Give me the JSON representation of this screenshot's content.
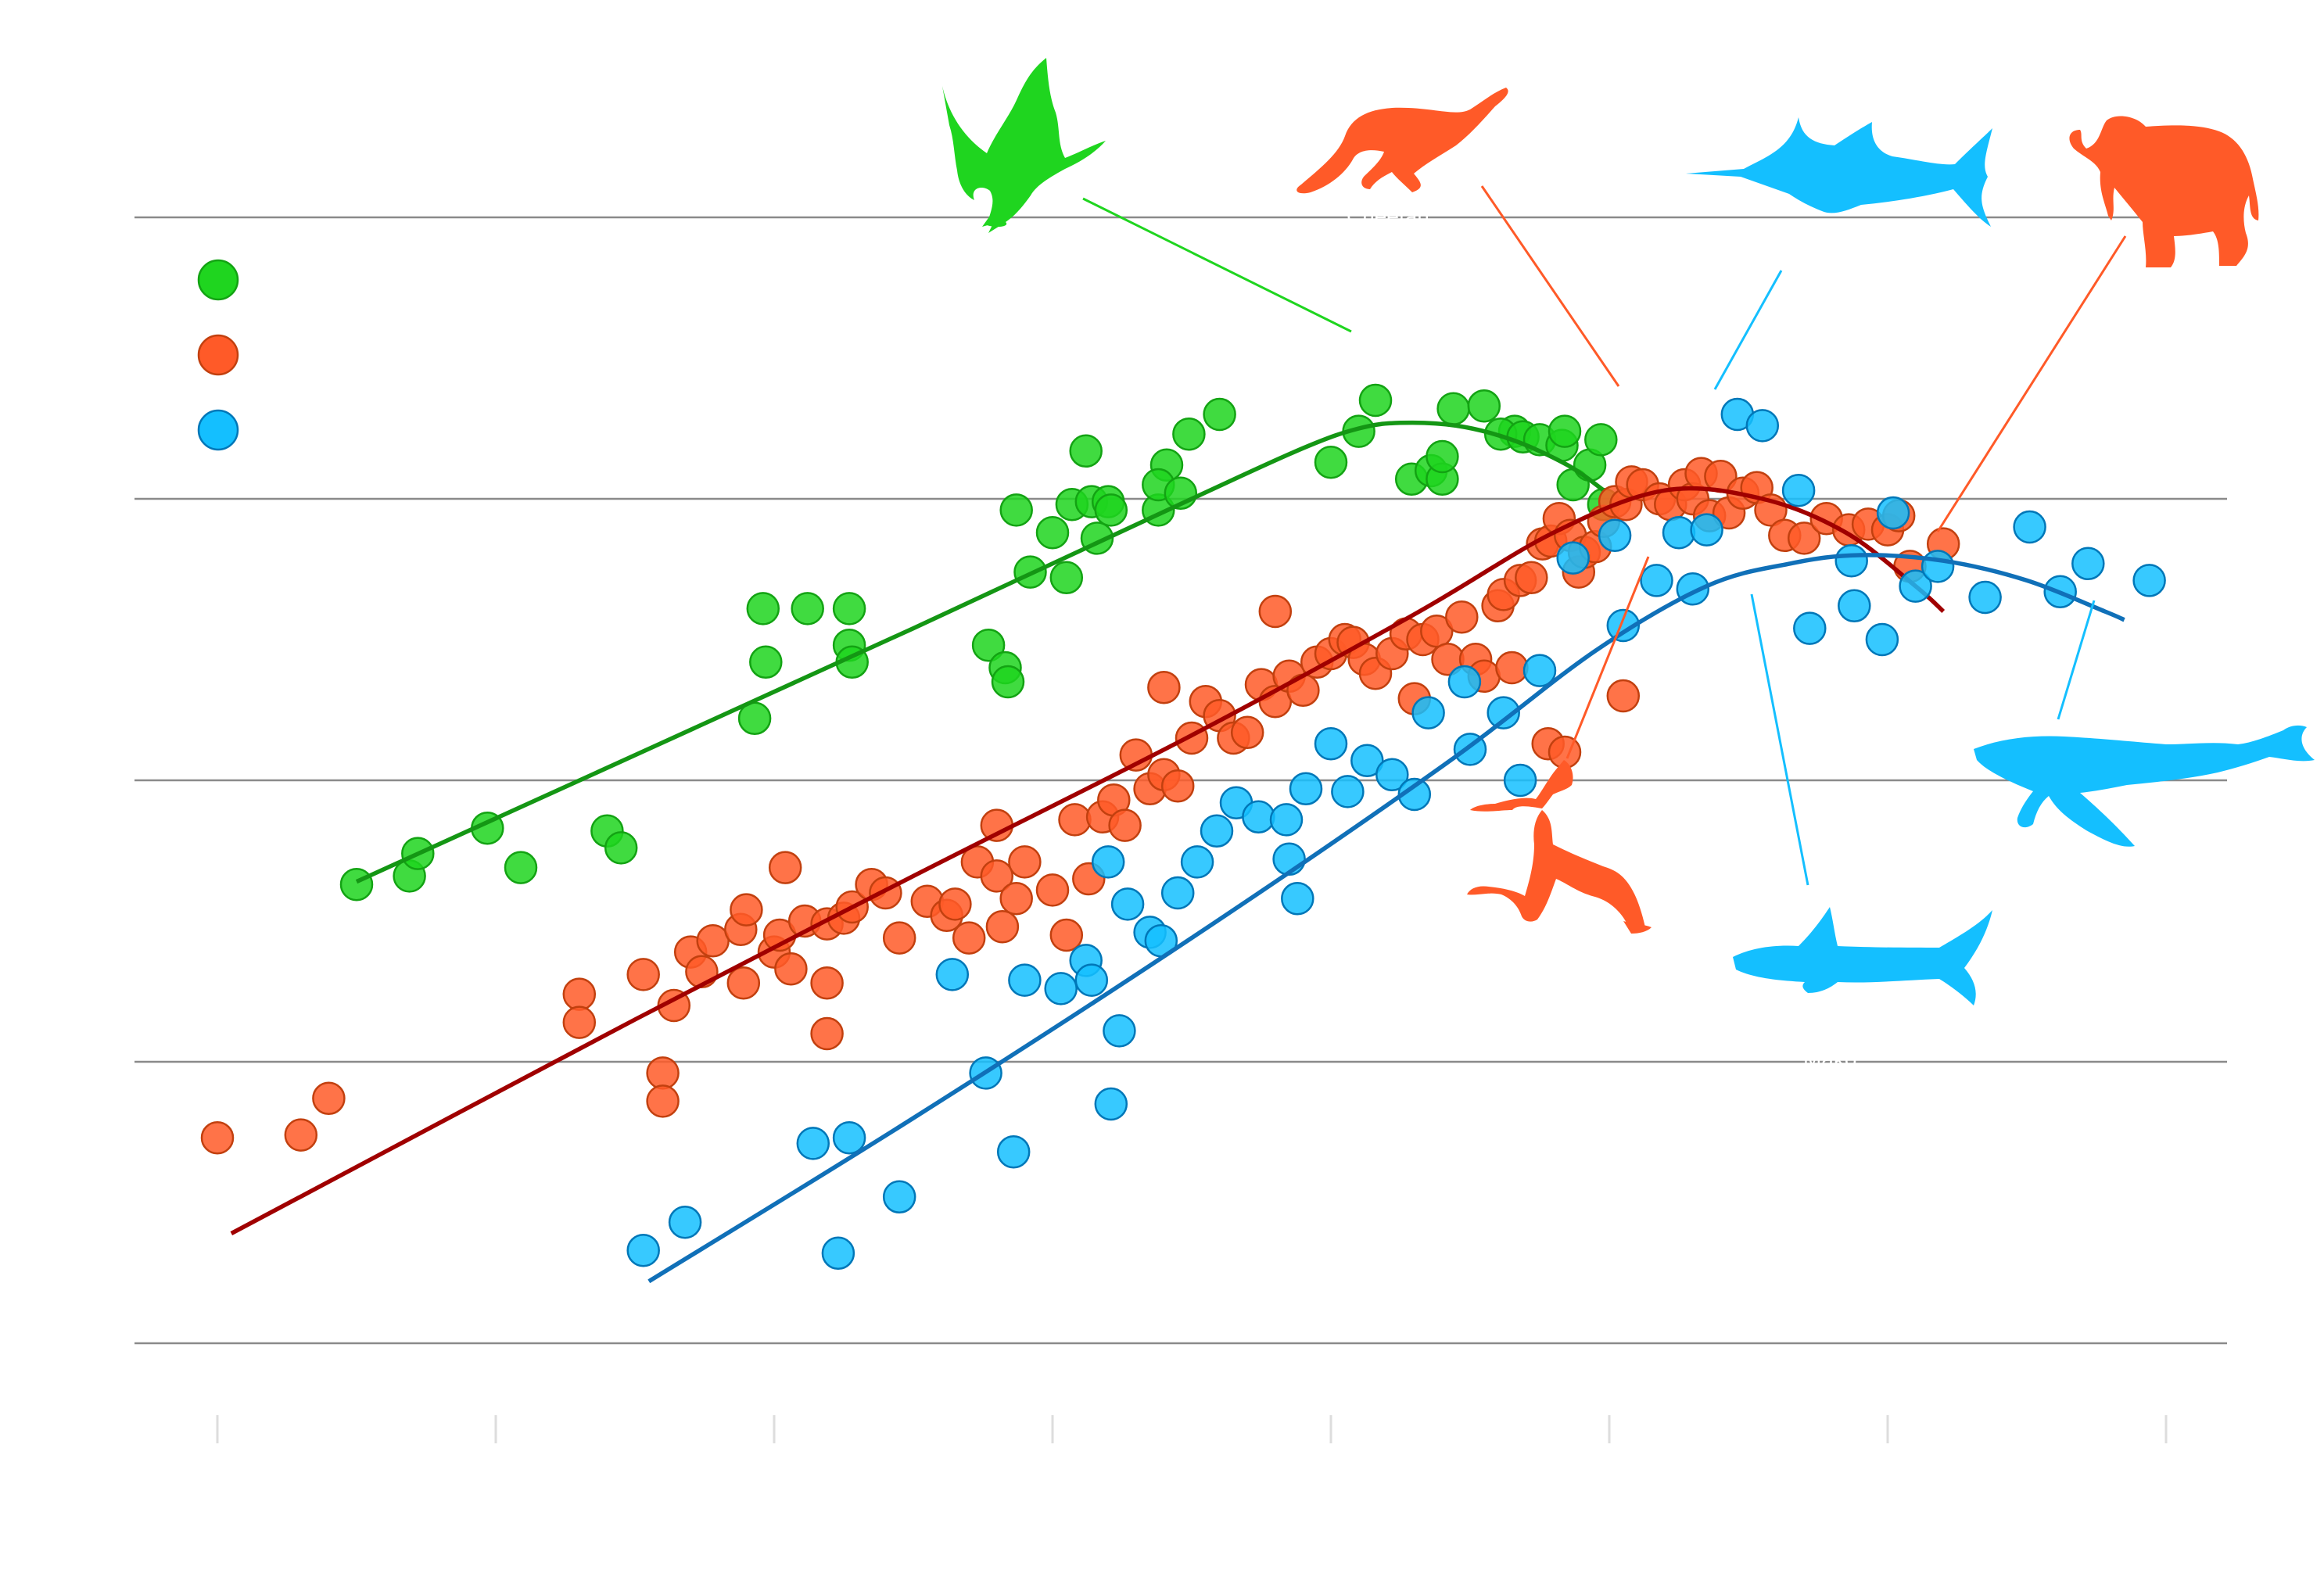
{
  "chart_data": {
    "type": "scatter",
    "title": "",
    "xlabel": "",
    "ylabel": "",
    "x_scale": "log",
    "y_scale": "log",
    "xlim": [
      -4,
      3
    ],
    "ylim": [
      0,
      4
    ],
    "grid": true,
    "legend_position": "top-left",
    "series": [
      {
        "color": "#1fd51f",
        "edge": "#13a313",
        "trend_color": "#149614",
        "points": [
          [
            -3.5,
            1.63
          ],
          [
            -3.31,
            1.66
          ],
          [
            -3.28,
            1.74
          ],
          [
            -3.03,
            1.83
          ],
          [
            -2.91,
            1.69
          ],
          [
            -2.6,
            1.82
          ],
          [
            -2.55,
            1.76
          ],
          [
            -2.07,
            2.22
          ],
          [
            -2.04,
            2.61
          ],
          [
            -2.03,
            2.42
          ],
          [
            -1.88,
            2.61
          ],
          [
            -1.73,
            2.48
          ],
          [
            -1.72,
            2.42
          ],
          [
            -1.73,
            2.61
          ],
          [
            -1.23,
            2.48
          ],
          [
            -1.17,
            2.4
          ],
          [
            -1.16,
            2.35
          ],
          [
            -1.13,
            2.96
          ],
          [
            -1.08,
            2.74
          ],
          [
            -1.0,
            2.88
          ],
          [
            -0.95,
            2.72
          ],
          [
            -0.93,
            2.98
          ],
          [
            -0.88,
            3.17
          ],
          [
            -0.86,
            2.99
          ],
          [
            -0.84,
            2.86
          ],
          [
            -0.8,
            2.99
          ],
          [
            -0.79,
            2.96
          ],
          [
            -0.51,
            3.23
          ],
          [
            -0.59,
            3.12
          ],
          [
            -0.62,
            2.96
          ],
          [
            -0.62,
            3.05
          ],
          [
            -0.4,
            3.3
          ],
          [
            -0.54,
            3.02
          ],
          [
            0.1,
            3.24
          ],
          [
            0.0,
            3.13
          ],
          [
            0.29,
            3.07
          ],
          [
            0.36,
            3.1
          ],
          [
            0.4,
            3.07
          ],
          [
            0.16,
            3.35
          ],
          [
            0.4,
            3.15
          ],
          [
            0.44,
            3.32
          ],
          [
            0.55,
            3.33
          ],
          [
            0.66,
            3.24
          ],
          [
            0.61,
            3.23
          ],
          [
            0.69,
            3.22
          ],
          [
            0.75,
            3.21
          ],
          [
            0.83,
            3.19
          ],
          [
            0.84,
            3.24
          ],
          [
            0.87,
            3.05
          ],
          [
            0.93,
            3.12
          ],
          [
            0.97,
            3.21
          ],
          [
            0.98,
            2.98
          ]
        ],
        "trend": [
          [
            -3.5,
            1.64
          ],
          [
            -1.5,
            2.54
          ],
          [
            -0.5,
            3.0
          ],
          [
            -0.1,
            3.18
          ],
          [
            0.1,
            3.25
          ],
          [
            0.25,
            3.27
          ],
          [
            0.45,
            3.26
          ],
          [
            0.65,
            3.21
          ],
          [
            0.85,
            3.12
          ],
          [
            0.98,
            3.03
          ]
        ]
      },
      {
        "color": "#ff5a28",
        "edge": "#c2400f",
        "trend_color": "#a00000",
        "points": [
          [
            -4.0,
            0.73
          ],
          [
            -3.7,
            0.74
          ],
          [
            -3.6,
            0.87
          ],
          [
            -2.7,
            1.24
          ],
          [
            -2.7,
            1.14
          ],
          [
            -2.47,
            1.31
          ],
          [
            -2.4,
            0.96
          ],
          [
            -2.4,
            0.86
          ],
          [
            -2.36,
            1.2
          ],
          [
            -2.3,
            1.39
          ],
          [
            -2.26,
            1.32
          ],
          [
            -2.22,
            1.43
          ],
          [
            -2.12,
            1.47
          ],
          [
            -2.11,
            1.28
          ],
          [
            -2.1,
            1.54
          ],
          [
            -2.0,
            1.39
          ],
          [
            -1.98,
            1.45
          ],
          [
            -1.96,
            1.69
          ],
          [
            -1.94,
            1.33
          ],
          [
            -1.89,
            1.5
          ],
          [
            -1.81,
            1.49
          ],
          [
            -1.81,
            1.28
          ],
          [
            -1.81,
            1.1
          ],
          [
            -1.75,
            1.51
          ],
          [
            -1.72,
            1.55
          ],
          [
            -1.65,
            1.63
          ],
          [
            -1.6,
            1.6
          ],
          [
            -1.55,
            1.44
          ],
          [
            -1.45,
            1.57
          ],
          [
            -1.38,
            1.52
          ],
          [
            -1.35,
            1.56
          ],
          [
            -1.3,
            1.44
          ],
          [
            -1.27,
            1.71
          ],
          [
            -1.2,
            1.84
          ],
          [
            -1.2,
            1.66
          ],
          [
            -1.18,
            1.48
          ],
          [
            -1.13,
            1.58
          ],
          [
            -1.1,
            1.71
          ],
          [
            -1.0,
            1.61
          ],
          [
            -0.95,
            1.45
          ],
          [
            -0.92,
            1.86
          ],
          [
            -0.87,
            1.65
          ],
          [
            -0.82,
            1.87
          ],
          [
            -0.78,
            1.93
          ],
          [
            -0.74,
            1.84
          ],
          [
            -0.7,
            2.09
          ],
          [
            -0.65,
            1.97
          ],
          [
            -0.6,
            2.02
          ],
          [
            -0.55,
            1.98
          ],
          [
            -0.5,
            2.15
          ],
          [
            -0.45,
            2.28
          ],
          [
            -0.4,
            2.23
          ],
          [
            -0.35,
            2.15
          ],
          [
            -0.3,
            2.17
          ],
          [
            -0.25,
            2.34
          ],
          [
            -0.2,
            2.28
          ],
          [
            -0.15,
            2.37
          ],
          [
            -0.1,
            2.32
          ],
          [
            -0.05,
            2.42
          ],
          [
            0.0,
            2.45
          ],
          [
            0.05,
            2.5
          ],
          [
            0.08,
            2.49
          ],
          [
            0.12,
            2.43
          ],
          [
            0.16,
            2.38
          ],
          [
            0.22,
            2.45
          ],
          [
            0.27,
            2.52
          ],
          [
            0.33,
            2.5
          ],
          [
            0.38,
            2.53
          ],
          [
            0.42,
            2.43
          ],
          [
            0.47,
            2.58
          ],
          [
            0.52,
            2.43
          ],
          [
            0.55,
            2.37
          ],
          [
            0.6,
            2.62
          ],
          [
            0.62,
            2.66
          ],
          [
            0.68,
            2.71
          ],
          [
            0.72,
            2.72
          ],
          [
            0.76,
            2.84
          ],
          [
            0.79,
            2.85
          ],
          [
            0.82,
            2.93
          ],
          [
            0.86,
            2.87
          ],
          [
            0.89,
            2.74
          ],
          [
            0.91,
            2.81
          ],
          [
            0.95,
            2.83
          ],
          [
            0.98,
            2.92
          ],
          [
            1.02,
            2.99
          ],
          [
            1.06,
            2.98
          ],
          [
            1.08,
            3.06
          ],
          [
            1.12,
            3.05
          ],
          [
            1.18,
            3.0
          ],
          [
            1.22,
            2.98
          ],
          [
            1.27,
            3.05
          ],
          [
            1.3,
            3.0
          ],
          [
            1.33,
            3.09
          ],
          [
            1.36,
            2.94
          ],
          [
            1.4,
            3.08
          ],
          [
            1.43,
            2.95
          ],
          [
            1.48,
            3.02
          ],
          [
            1.53,
            3.04
          ],
          [
            1.58,
            2.96
          ],
          [
            1.63,
            2.87
          ],
          [
            1.7,
            2.86
          ],
          [
            1.78,
            2.93
          ],
          [
            1.86,
            2.89
          ],
          [
            1.93,
            2.91
          ],
          [
            2.0,
            2.89
          ],
          [
            2.04,
            2.94
          ],
          [
            2.08,
            2.76
          ],
          [
            2.2,
            2.84
          ],
          [
            -0.6,
            2.33
          ],
          [
            -0.2,
            2.6
          ],
          [
            0.3,
            2.29
          ],
          [
            0.65,
            2.4
          ],
          [
            0.78,
            2.13
          ],
          [
            0.84,
            2.1
          ],
          [
            1.05,
            2.3
          ]
        ],
        "trend": [
          [
            -3.95,
            0.39
          ],
          [
            -2.5,
            1.15
          ],
          [
            -1.5,
            1.66
          ],
          [
            -0.5,
            2.16
          ],
          [
            0.3,
            2.59
          ],
          [
            0.8,
            2.88
          ],
          [
            1.2,
            3.03
          ],
          [
            1.55,
            3.0
          ],
          [
            1.85,
            2.88
          ],
          [
            2.1,
            2.69
          ],
          [
            2.2,
            2.6
          ]
        ]
      },
      {
        "color": "#14bfff",
        "edge": "#0077b8",
        "trend_color": "#1070b8",
        "points": [
          [
            -2.47,
            0.33
          ],
          [
            -2.32,
            0.43
          ],
          [
            -1.86,
            0.71
          ],
          [
            -1.73,
            0.73
          ],
          [
            -1.77,
            0.32
          ],
          [
            -1.55,
            0.52
          ],
          [
            -1.36,
            1.31
          ],
          [
            -1.24,
            0.96
          ],
          [
            -1.14,
            0.68
          ],
          [
            -1.1,
            1.29
          ],
          [
            -0.97,
            1.26
          ],
          [
            -0.88,
            1.36
          ],
          [
            -0.86,
            1.29
          ],
          [
            -0.79,
            0.85
          ],
          [
            -0.8,
            1.71
          ],
          [
            -0.76,
            1.11
          ],
          [
            -0.73,
            1.56
          ],
          [
            -0.65,
            1.46
          ],
          [
            -0.61,
            1.43
          ],
          [
            -0.55,
            1.6
          ],
          [
            -0.48,
            1.71
          ],
          [
            -0.41,
            1.82
          ],
          [
            -0.34,
            1.92
          ],
          [
            -0.26,
            1.87
          ],
          [
            -0.16,
            1.86
          ],
          [
            -0.09,
            1.97
          ],
          [
            0.0,
            2.13
          ],
          [
            -0.12,
            1.58
          ],
          [
            -0.15,
            1.72
          ],
          [
            0.06,
            1.96
          ],
          [
            0.13,
            2.07
          ],
          [
            0.22,
            2.02
          ],
          [
            0.35,
            2.24
          ],
          [
            0.48,
            2.35
          ],
          [
            0.62,
            2.24
          ],
          [
            0.75,
            2.39
          ],
          [
            0.87,
            2.79
          ],
          [
            1.02,
            2.87
          ],
          [
            1.17,
            2.71
          ],
          [
            1.25,
            2.88
          ],
          [
            1.35,
            2.89
          ],
          [
            1.46,
            3.3
          ],
          [
            1.55,
            3.26
          ],
          [
            1.68,
            3.03
          ],
          [
            1.87,
            2.78
          ],
          [
            2.02,
            2.95
          ],
          [
            2.1,
            2.69
          ],
          [
            2.18,
            2.76
          ],
          [
            2.35,
            2.65
          ],
          [
            2.51,
            2.9
          ],
          [
            2.62,
            2.67
          ],
          [
            2.72,
            2.77
          ],
          [
            2.94,
            2.71
          ],
          [
            0.3,
            1.95
          ],
          [
            0.5,
            2.11
          ],
          [
            0.68,
            2.0
          ],
          [
            1.05,
            2.55
          ],
          [
            1.3,
            2.68
          ],
          [
            1.72,
            2.54
          ],
          [
            1.88,
            2.62
          ],
          [
            1.98,
            2.5
          ]
        ],
        "trend": [
          [
            -2.45,
            0.22
          ],
          [
            -1.5,
            0.8
          ],
          [
            -0.5,
            1.44
          ],
          [
            0.4,
            2.05
          ],
          [
            0.95,
            2.46
          ],
          [
            1.35,
            2.69
          ],
          [
            1.65,
            2.77
          ],
          [
            1.9,
            2.8
          ],
          [
            2.2,
            2.78
          ],
          [
            2.5,
            2.71
          ],
          [
            2.78,
            2.6
          ],
          [
            2.85,
            2.57
          ]
        ]
      }
    ]
  }
}
